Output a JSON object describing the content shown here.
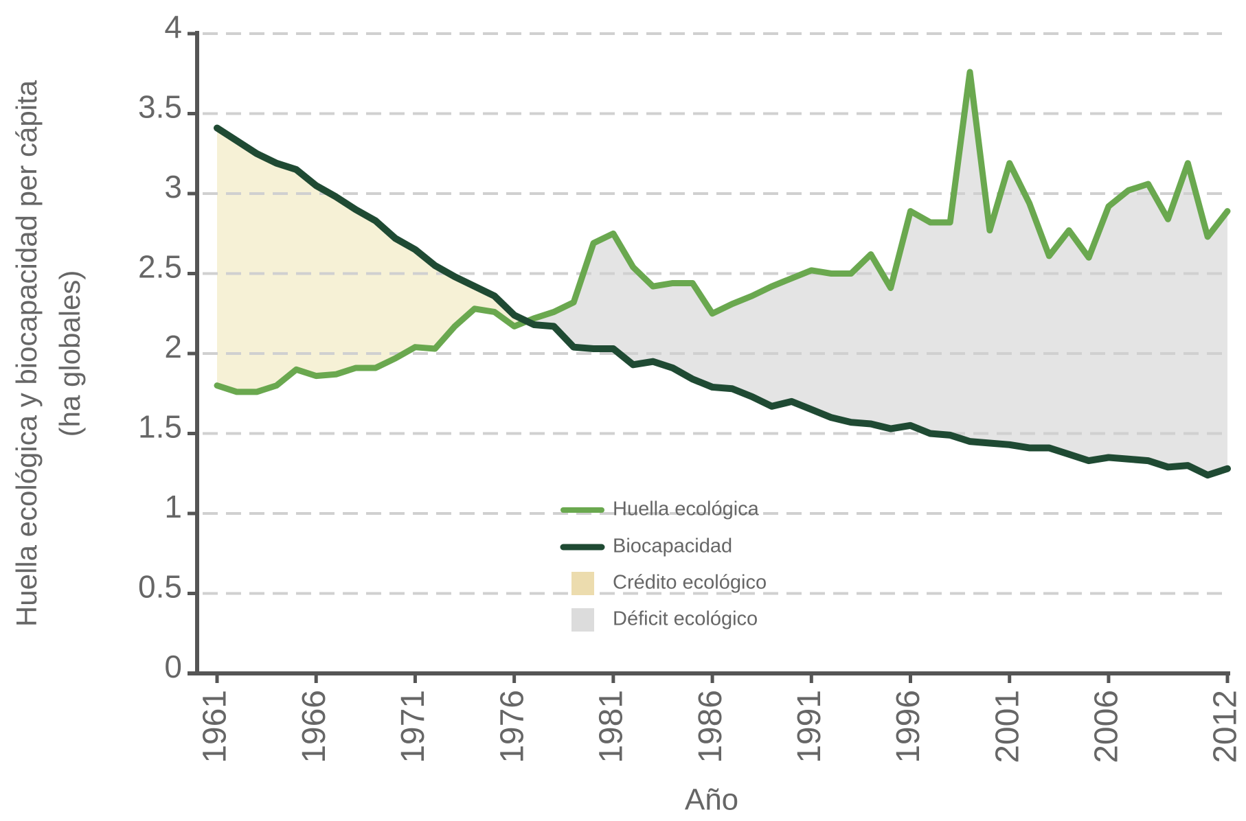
{
  "chart_data": {
    "type": "line",
    "ylabel": [
      "Huella ecológica y biocapacidad per cápita",
      "(ha globales)"
    ],
    "xlabel": "Año",
    "x": [
      1961,
      1962,
      1963,
      1964,
      1965,
      1966,
      1967,
      1968,
      1969,
      1970,
      1971,
      1972,
      1973,
      1974,
      1975,
      1976,
      1977,
      1978,
      1979,
      1980,
      1981,
      1982,
      1983,
      1984,
      1985,
      1986,
      1987,
      1988,
      1989,
      1990,
      1991,
      1992,
      1993,
      1994,
      1995,
      1996,
      1997,
      1998,
      1999,
      2000,
      2001,
      2002,
      2003,
      2004,
      2005,
      2006,
      2007,
      2008,
      2009,
      2010,
      2011,
      2012
    ],
    "series": [
      {
        "name": "Huella ecológica",
        "color": "#6aa84f",
        "values": [
          1.8,
          1.76,
          1.76,
          1.8,
          1.9,
          1.86,
          1.87,
          1.91,
          1.91,
          1.97,
          2.04,
          2.03,
          2.17,
          2.28,
          2.26,
          2.17,
          2.22,
          2.26,
          2.32,
          2.69,
          2.75,
          2.54,
          2.42,
          2.44,
          2.44,
          2.25,
          2.31,
          2.36,
          2.42,
          2.47,
          2.52,
          2.5,
          2.5,
          2.62,
          2.41,
          2.89,
          2.82,
          2.82,
          3.76,
          2.77,
          3.19,
          2.94,
          2.61,
          2.77,
          2.6,
          2.92,
          3.02,
          3.06,
          2.84,
          3.19,
          2.73,
          2.89
        ]
      },
      {
        "name": "Biocapacidad",
        "color": "#1f4a33",
        "values": [
          3.41,
          3.33,
          3.25,
          3.19,
          3.15,
          3.05,
          2.98,
          2.9,
          2.83,
          2.72,
          2.65,
          2.55,
          2.48,
          2.42,
          2.36,
          2.24,
          2.18,
          2.17,
          2.04,
          2.03,
          2.03,
          1.93,
          1.95,
          1.91,
          1.84,
          1.79,
          1.78,
          1.73,
          1.67,
          1.7,
          1.65,
          1.6,
          1.57,
          1.56,
          1.53,
          1.55,
          1.5,
          1.49,
          1.45,
          1.44,
          1.43,
          1.41,
          1.41,
          1.37,
          1.33,
          1.35,
          1.34,
          1.33,
          1.29,
          1.3,
          1.24,
          1.28
        ]
      }
    ],
    "areas": [
      {
        "name": "Crédito ecológico",
        "color": "#f6f1d6"
      },
      {
        "name": "Déficit ecológico",
        "color": "#e4e4e4"
      }
    ],
    "legend_swatches": [
      "#ecdcae",
      "#dcdcdc"
    ],
    "xlim": [
      1961,
      2012
    ],
    "xticks": [
      1961,
      1966,
      1971,
      1976,
      1981,
      1986,
      1991,
      1996,
      2001,
      2006,
      2012
    ],
    "ylim": [
      0,
      4
    ],
    "yticks": [
      0,
      0.5,
      1,
      1.5,
      2,
      2.5,
      3,
      3.5,
      4
    ],
    "grid": true
  }
}
